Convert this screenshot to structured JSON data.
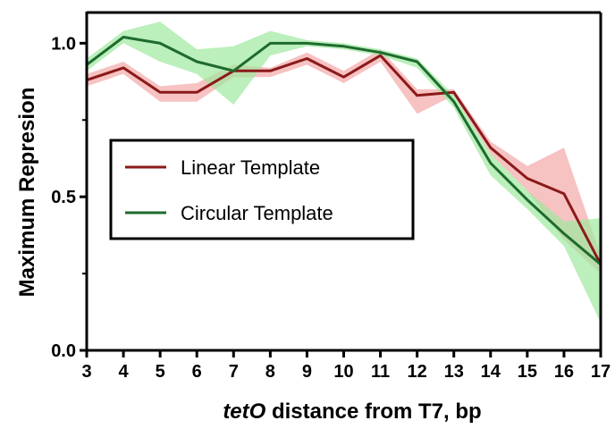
{
  "chart_data": {
    "type": "line",
    "title": "",
    "xlabel_italic": "tetO",
    "xlabel_rest": " distance from T7, bp",
    "ylabel": "Maximum Represion",
    "x": [
      3,
      4,
      5,
      6,
      7,
      8,
      9,
      10,
      11,
      12,
      13,
      14,
      15,
      16,
      17
    ],
    "xlim": [
      3,
      17
    ],
    "ylim": [
      0.0,
      1.1
    ],
    "yticks": [
      0.0,
      0.5,
      1.0
    ],
    "yticklabels": [
      "0.0",
      "0.5",
      "1.0"
    ],
    "grid": false,
    "legend_position": "center-left",
    "series": [
      {
        "name": "Linear Template",
        "line_color": "#8b1a1a",
        "band_color": "#f4a8a8",
        "values": [
          0.88,
          0.92,
          0.84,
          0.84,
          0.91,
          0.91,
          0.95,
          0.89,
          0.96,
          0.83,
          0.84,
          0.66,
          0.56,
          0.51,
          0.28
        ],
        "lower": [
          0.86,
          0.9,
          0.81,
          0.81,
          0.89,
          0.89,
          0.93,
          0.87,
          0.94,
          0.77,
          0.83,
          0.64,
          0.52,
          0.36,
          0.25
        ],
        "upper": [
          0.9,
          0.94,
          0.86,
          0.87,
          0.93,
          0.92,
          0.97,
          0.91,
          0.98,
          0.85,
          0.85,
          0.68,
          0.6,
          0.66,
          0.31
        ]
      },
      {
        "name": "Circular Template",
        "line_color": "#1e6b2e",
        "band_color": "#9ee89e",
        "values": [
          0.93,
          1.02,
          1.0,
          0.94,
          0.91,
          1.0,
          1.0,
          0.99,
          0.97,
          0.94,
          0.81,
          0.61,
          0.49,
          0.38,
          0.28
        ],
        "lower": [
          0.91,
          1.0,
          0.94,
          0.9,
          0.8,
          0.96,
          0.99,
          0.98,
          0.96,
          0.92,
          0.79,
          0.57,
          0.46,
          0.34,
          0.09
        ],
        "upper": [
          0.95,
          1.04,
          1.07,
          0.98,
          0.99,
          1.04,
          1.01,
          1.0,
          0.98,
          0.95,
          0.83,
          0.64,
          0.52,
          0.42,
          0.43
        ]
      }
    ]
  }
}
